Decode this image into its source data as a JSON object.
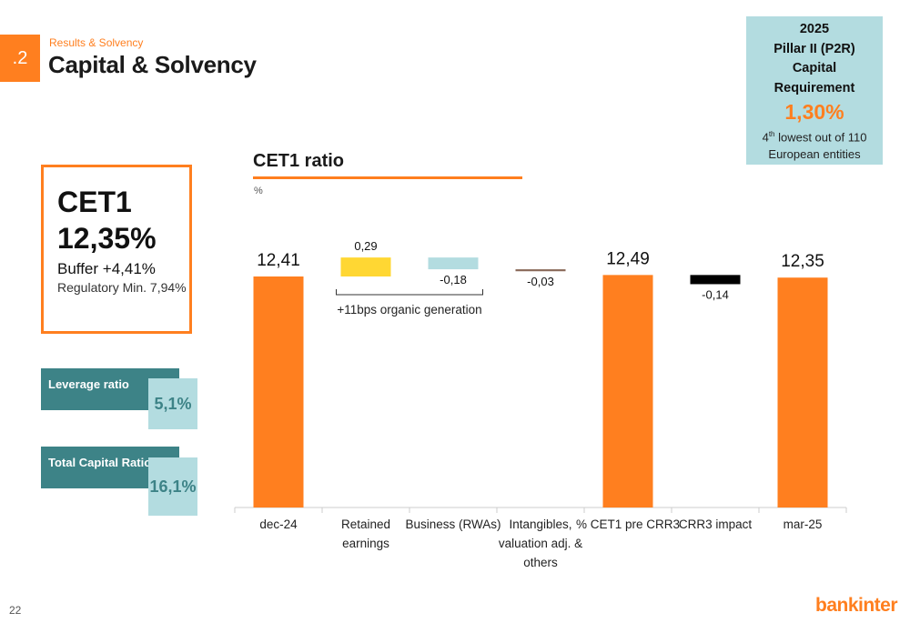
{
  "header": {
    "badge": ".2",
    "subtitle": "Results & Solvency",
    "title": "Capital & Solvency"
  },
  "p2r": {
    "year": "2025",
    "line1": "Pillar II (P2R)",
    "line2": "Capital",
    "line3": "Requirement",
    "value": "1,30%",
    "rank_num": "4",
    "rank_sup": "th",
    "rank_text": " lowest out of 110",
    "rank_text2": "European entities"
  },
  "cet1": {
    "label": "CET1",
    "value": "12,35%",
    "buffer": "Buffer +4,41%",
    "reg_min": "Regulatory Min. 7,94%"
  },
  "kpis": [
    {
      "label": "Leverage ratio",
      "value": "5,1%"
    },
    {
      "label": "Total Capital Ratio",
      "value": "16,1%"
    }
  ],
  "footer": {
    "page": "22",
    "logo": "bankinter"
  },
  "chart_data": {
    "type": "bar",
    "subtype": "waterfall",
    "title": "CET1 ratio",
    "unit": "%",
    "categories": [
      [
        "dec-24"
      ],
      [
        "Retained",
        "earnings"
      ],
      [
        "Business (RWAs)"
      ],
      [
        "Intangibles,",
        "valuation adj. &",
        "others"
      ],
      [
        "% CET1 pre CRR3"
      ],
      [
        "CRR3 impact"
      ],
      [
        "mar-25"
      ]
    ],
    "bars": [
      {
        "kind": "total",
        "value": 12.41,
        "label": "12,41",
        "color": "#ff7f1f"
      },
      {
        "kind": "delta",
        "value": 0.29,
        "label": "0,29",
        "color": "#ffd733"
      },
      {
        "kind": "delta",
        "value": -0.18,
        "label": "-0,18",
        "color": "#b3dce0"
      },
      {
        "kind": "delta",
        "value": -0.03,
        "label": "-0,03",
        "color": "#8a6a5a"
      },
      {
        "kind": "total",
        "value": 12.49,
        "label": "12,49",
        "color": "#ff7f1f"
      },
      {
        "kind": "delta",
        "value": -0.14,
        "label": "-0,14",
        "color": "#000000"
      },
      {
        "kind": "total",
        "value": 12.35,
        "label": "12,35",
        "color": "#ff7f1f"
      }
    ],
    "annotation": {
      "text": "+11bps organic generation",
      "spans": [
        1,
        2
      ]
    }
  }
}
